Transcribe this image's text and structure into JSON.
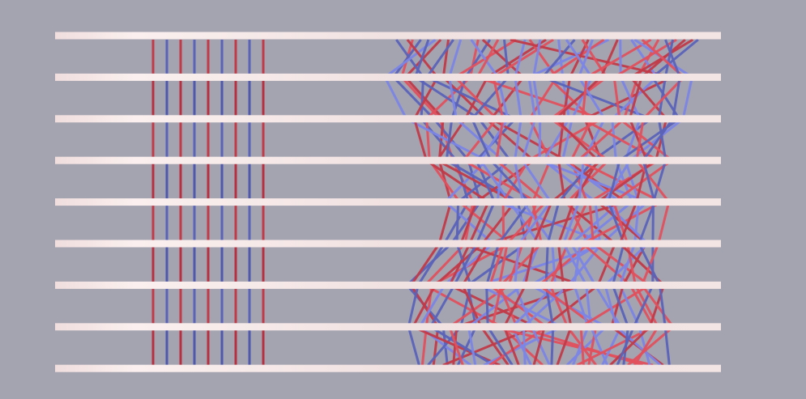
{
  "colors": {
    "background": "#a4a3b0",
    "rail": "#f3e4e4",
    "rail_highlight": "#ffffff",
    "red_strand": "#c23a48",
    "red_strand_light": "#e2505c",
    "blue_strand": "#5a63b8",
    "blue_strand_light": "#7b86e6"
  },
  "diagram": {
    "rail_count": 9,
    "ordered_strand_count": 9,
    "ordered_pattern": [
      "red",
      "blue",
      "red",
      "blue",
      "red",
      "blue",
      "red",
      "blue",
      "red"
    ],
    "tangled_strand_count": 44,
    "tangled_pattern": [
      "red",
      "blue"
    ]
  }
}
